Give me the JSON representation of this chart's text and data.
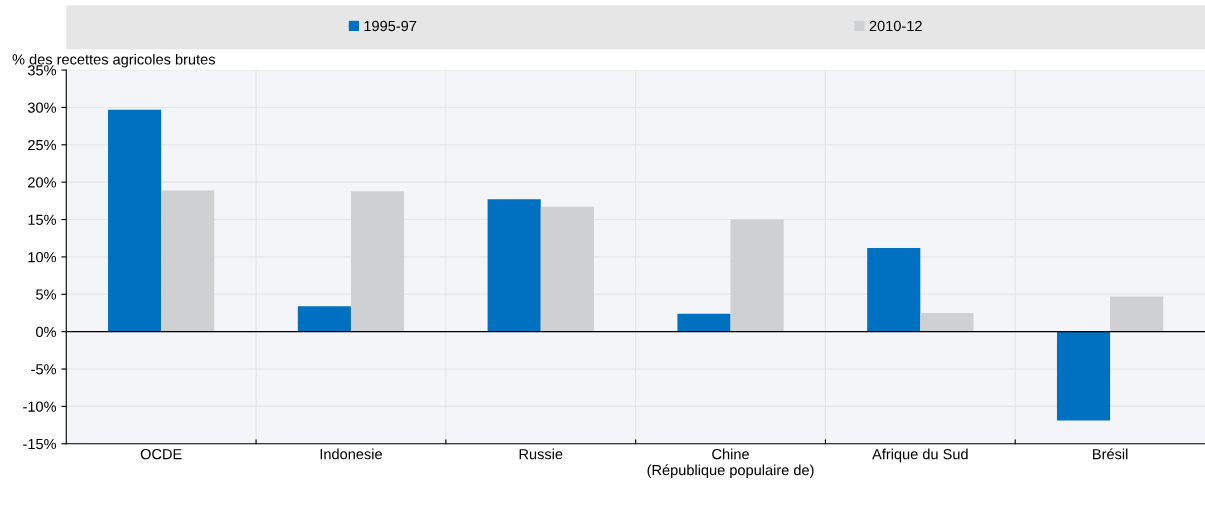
{
  "chart_data": {
    "type": "bar",
    "ylabel": "% des recettes agricoles brutes",
    "categories": [
      "OCDE",
      "Indonesie",
      "Russie",
      "Chine\n(République populaire de)",
      "Afrique du Sud",
      "Brésil"
    ],
    "series": [
      {
        "name": "1995-97",
        "color": "#0070c0",
        "values": [
          29.7,
          3.4,
          17.7,
          2.4,
          11.2,
          -11.9
        ]
      },
      {
        "name": "2010-12",
        "color": "#cfd0d2",
        "values": [
          18.9,
          18.8,
          16.7,
          15.0,
          2.5,
          4.7
        ]
      }
    ],
    "ylim": [
      -15,
      35
    ],
    "yticks": [
      {
        "value": -15,
        "label": "-15%"
      },
      {
        "value": -10,
        "label": "-10%"
      },
      {
        "value": -5,
        "label": "-5%"
      },
      {
        "value": 0,
        "label": "0%"
      },
      {
        "value": 5,
        "label": "5%"
      },
      {
        "value": 10,
        "label": "10%"
      },
      {
        "value": 15,
        "label": "15%"
      },
      {
        "value": 20,
        "label": "20%"
      },
      {
        "value": 25,
        "label": "25%"
      },
      {
        "value": 30,
        "label": "30%"
      },
      {
        "value": 35,
        "label": "35%"
      }
    ],
    "grid": true,
    "legend": "top"
  }
}
